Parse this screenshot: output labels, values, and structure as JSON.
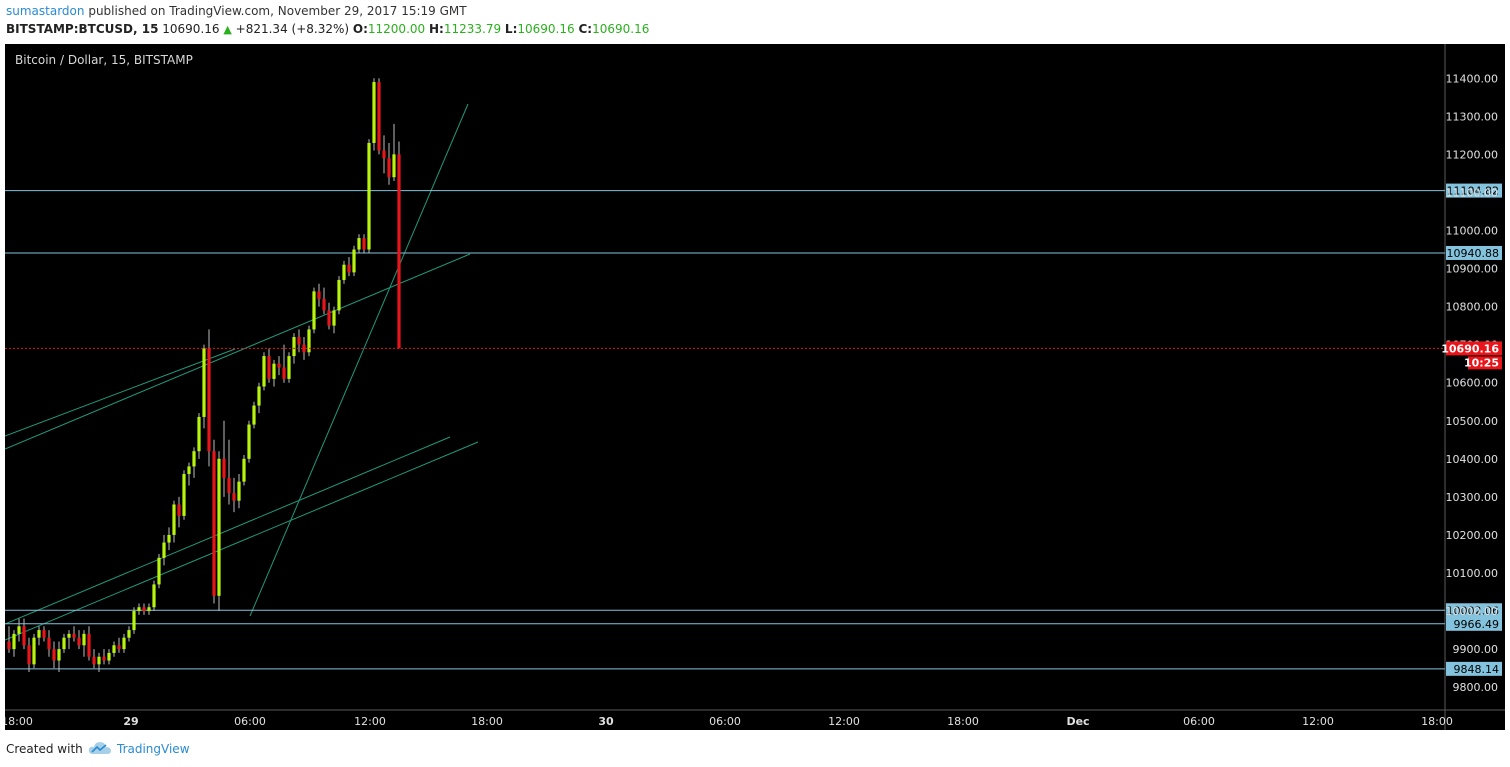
{
  "header": {
    "author": "sumastardon",
    "published_text": "published on TradingView.com, November 29, 2017 15:19 GMT",
    "symbol": "BITSTAMP:BTCUSD, 15",
    "last": "10690.16",
    "change": "+821.34 (+8.32%)",
    "open_label": "O:",
    "open": "11200.00",
    "high_label": "H:",
    "high": "11233.79",
    "low_label": "L:",
    "low": "10690.16",
    "close_label": "C:",
    "close": "10690.16"
  },
  "footer": {
    "created_with": "Created with",
    "brand": "TradingView"
  },
  "colors": {
    "background": "#000000",
    "up": "#b8f50e",
    "down": "#e8151b",
    "level_line": "#84c3dd",
    "trend_line": "#1f9a7c",
    "last_price": "#e8151b"
  },
  "chart_data": {
    "type": "candlestick",
    "title": "Bitcoin / Dollar, 15, BITSTAMP",
    "ylim": [
      9740,
      11490
    ],
    "y_ticks": [
      9800,
      9900,
      10000,
      10100,
      10200,
      10300,
      10400,
      10500,
      10600,
      10700,
      10800,
      10900,
      11000,
      11100,
      11200,
      11300,
      11400
    ],
    "x_ticks": [
      "18:00",
      "29",
      "06:00",
      "12:00",
      "18:00",
      "30",
      "06:00",
      "12:00",
      "18:00",
      "Dec",
      "06:00",
      "12:00",
      "18:00"
    ],
    "candles": [
      [
        9920,
        9960,
        9890,
        9900
      ],
      [
        9900,
        9950,
        9880,
        9940
      ],
      [
        9940,
        9980,
        9920,
        9960
      ],
      [
        9960,
        9980,
        9900,
        9910
      ],
      [
        9910,
        9930,
        9840,
        9860
      ],
      [
        9860,
        9940,
        9850,
        9930
      ],
      [
        9930,
        9960,
        9910,
        9950
      ],
      [
        9950,
        9960,
        9920,
        9930
      ],
      [
        9930,
        9950,
        9880,
        9900
      ],
      [
        9900,
        9920,
        9850,
        9870
      ],
      [
        9870,
        9920,
        9840,
        9900
      ],
      [
        9900,
        9940,
        9890,
        9930
      ],
      [
        9930,
        9950,
        9900,
        9940
      ],
      [
        9940,
        9960,
        9920,
        9930
      ],
      [
        9930,
        9950,
        9900,
        9910
      ],
      [
        9910,
        9950,
        9880,
        9940
      ],
      [
        9940,
        9960,
        9870,
        9880
      ],
      [
        9880,
        9900,
        9850,
        9860
      ],
      [
        9860,
        9890,
        9840,
        9880
      ],
      [
        9880,
        9900,
        9860,
        9870
      ],
      [
        9870,
        9900,
        9860,
        9890
      ],
      [
        9890,
        9920,
        9880,
        9910
      ],
      [
        9910,
        9930,
        9890,
        9900
      ],
      [
        9900,
        9940,
        9890,
        9930
      ],
      [
        9930,
        9960,
        9920,
        9950
      ],
      [
        9950,
        10010,
        9940,
        10000
      ],
      [
        10000,
        10020,
        9990,
        10010
      ],
      [
        10010,
        10020,
        9990,
        10000
      ],
      [
        10000,
        10020,
        9990,
        10010
      ],
      [
        10010,
        10080,
        10000,
        10070
      ],
      [
        10070,
        10150,
        10060,
        10140
      ],
      [
        10140,
        10200,
        10120,
        10180
      ],
      [
        10180,
        10220,
        10160,
        10200
      ],
      [
        10200,
        10290,
        10180,
        10280
      ],
      [
        10280,
        10300,
        10220,
        10250
      ],
      [
        10250,
        10370,
        10240,
        10360
      ],
      [
        10360,
        10390,
        10330,
        10380
      ],
      [
        10380,
        10430,
        10350,
        10420
      ],
      [
        10420,
        10520,
        10400,
        10510
      ],
      [
        10510,
        10700,
        10480,
        10690
      ],
      [
        10690,
        10740,
        10380,
        10420
      ],
      [
        10420,
        10450,
        10020,
        10040
      ],
      [
        10040,
        10420,
        10000,
        10400
      ],
      [
        10400,
        10500,
        10300,
        10350
      ],
      [
        10350,
        10450,
        10280,
        10310
      ],
      [
        10310,
        10350,
        10260,
        10290
      ],
      [
        10290,
        10360,
        10270,
        10340
      ],
      [
        10340,
        10410,
        10330,
        10400
      ],
      [
        10400,
        10500,
        10390,
        10490
      ],
      [
        10490,
        10550,
        10480,
        10540
      ],
      [
        10540,
        10600,
        10520,
        10590
      ],
      [
        10590,
        10680,
        10580,
        10670
      ],
      [
        10670,
        10690,
        10600,
        10610
      ],
      [
        10610,
        10660,
        10590,
        10650
      ],
      [
        10650,
        10670,
        10620,
        10640
      ],
      [
        10640,
        10700,
        10600,
        10610
      ],
      [
        10610,
        10680,
        10600,
        10670
      ],
      [
        10670,
        10730,
        10650,
        10720
      ],
      [
        10720,
        10740,
        10680,
        10700
      ],
      [
        10700,
        10720,
        10660,
        10680
      ],
      [
        10680,
        10750,
        10670,
        10740
      ],
      [
        10740,
        10850,
        10730,
        10840
      ],
      [
        10840,
        10860,
        10800,
        10820
      ],
      [
        10820,
        10850,
        10780,
        10790
      ],
      [
        10790,
        10810,
        10740,
        10750
      ],
      [
        10750,
        10800,
        10730,
        10790
      ],
      [
        10790,
        10880,
        10780,
        10870
      ],
      [
        10870,
        10920,
        10860,
        10910
      ],
      [
        10910,
        10930,
        10880,
        10890
      ],
      [
        10890,
        10960,
        10880,
        10950
      ],
      [
        10950,
        10990,
        10940,
        10980
      ],
      [
        10980,
        10990,
        10940,
        10950
      ],
      [
        10950,
        11240,
        10940,
        11230
      ],
      [
        11230,
        11400,
        11210,
        11390
      ],
      [
        11390,
        11400,
        11200,
        11210
      ],
      [
        11210,
        11250,
        11150,
        11190
      ],
      [
        11190,
        11230,
        11120,
        11140
      ],
      [
        11140,
        11280,
        11130,
        11200
      ],
      [
        11200,
        11233.79,
        10690.16,
        10690.16
      ]
    ],
    "horizontal_levels": [
      11104.82,
      10940.88,
      10002.06,
      9966.49,
      9848.14
    ],
    "last_price": 10690.16,
    "countdown": "10:25"
  }
}
